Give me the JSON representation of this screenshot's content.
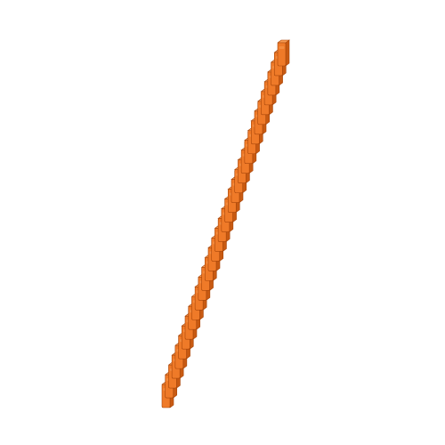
{
  "scene": {
    "background": "#ffffff",
    "object": "stacked-orange-brick-column",
    "brick_count": 36,
    "colors": {
      "face": "#ef7a28",
      "top": "#f69a52",
      "side": "#c85a12",
      "edge": "#a8460a"
    }
  }
}
